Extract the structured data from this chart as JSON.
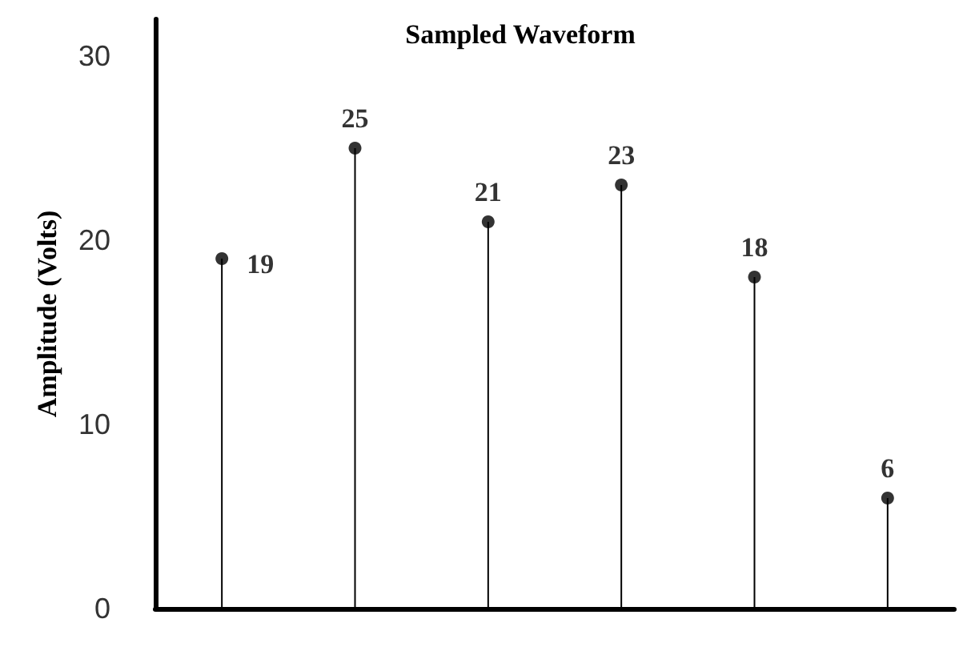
{
  "chart_data": {
    "type": "lollipop",
    "title": "Sampled Waveform",
    "ylabel": "Amplitude (Volts)",
    "categories": [
      null,
      null,
      null,
      null,
      null,
      null
    ],
    "values": [
      19,
      25,
      21,
      23,
      18,
      6
    ],
    "color": "#000000",
    "marker": "circle",
    "data_labels": true,
    "ylim": [
      0,
      32
    ],
    "yticks": [
      0,
      10,
      20,
      30
    ],
    "grid": false,
    "tick_labels": "y"
  }
}
